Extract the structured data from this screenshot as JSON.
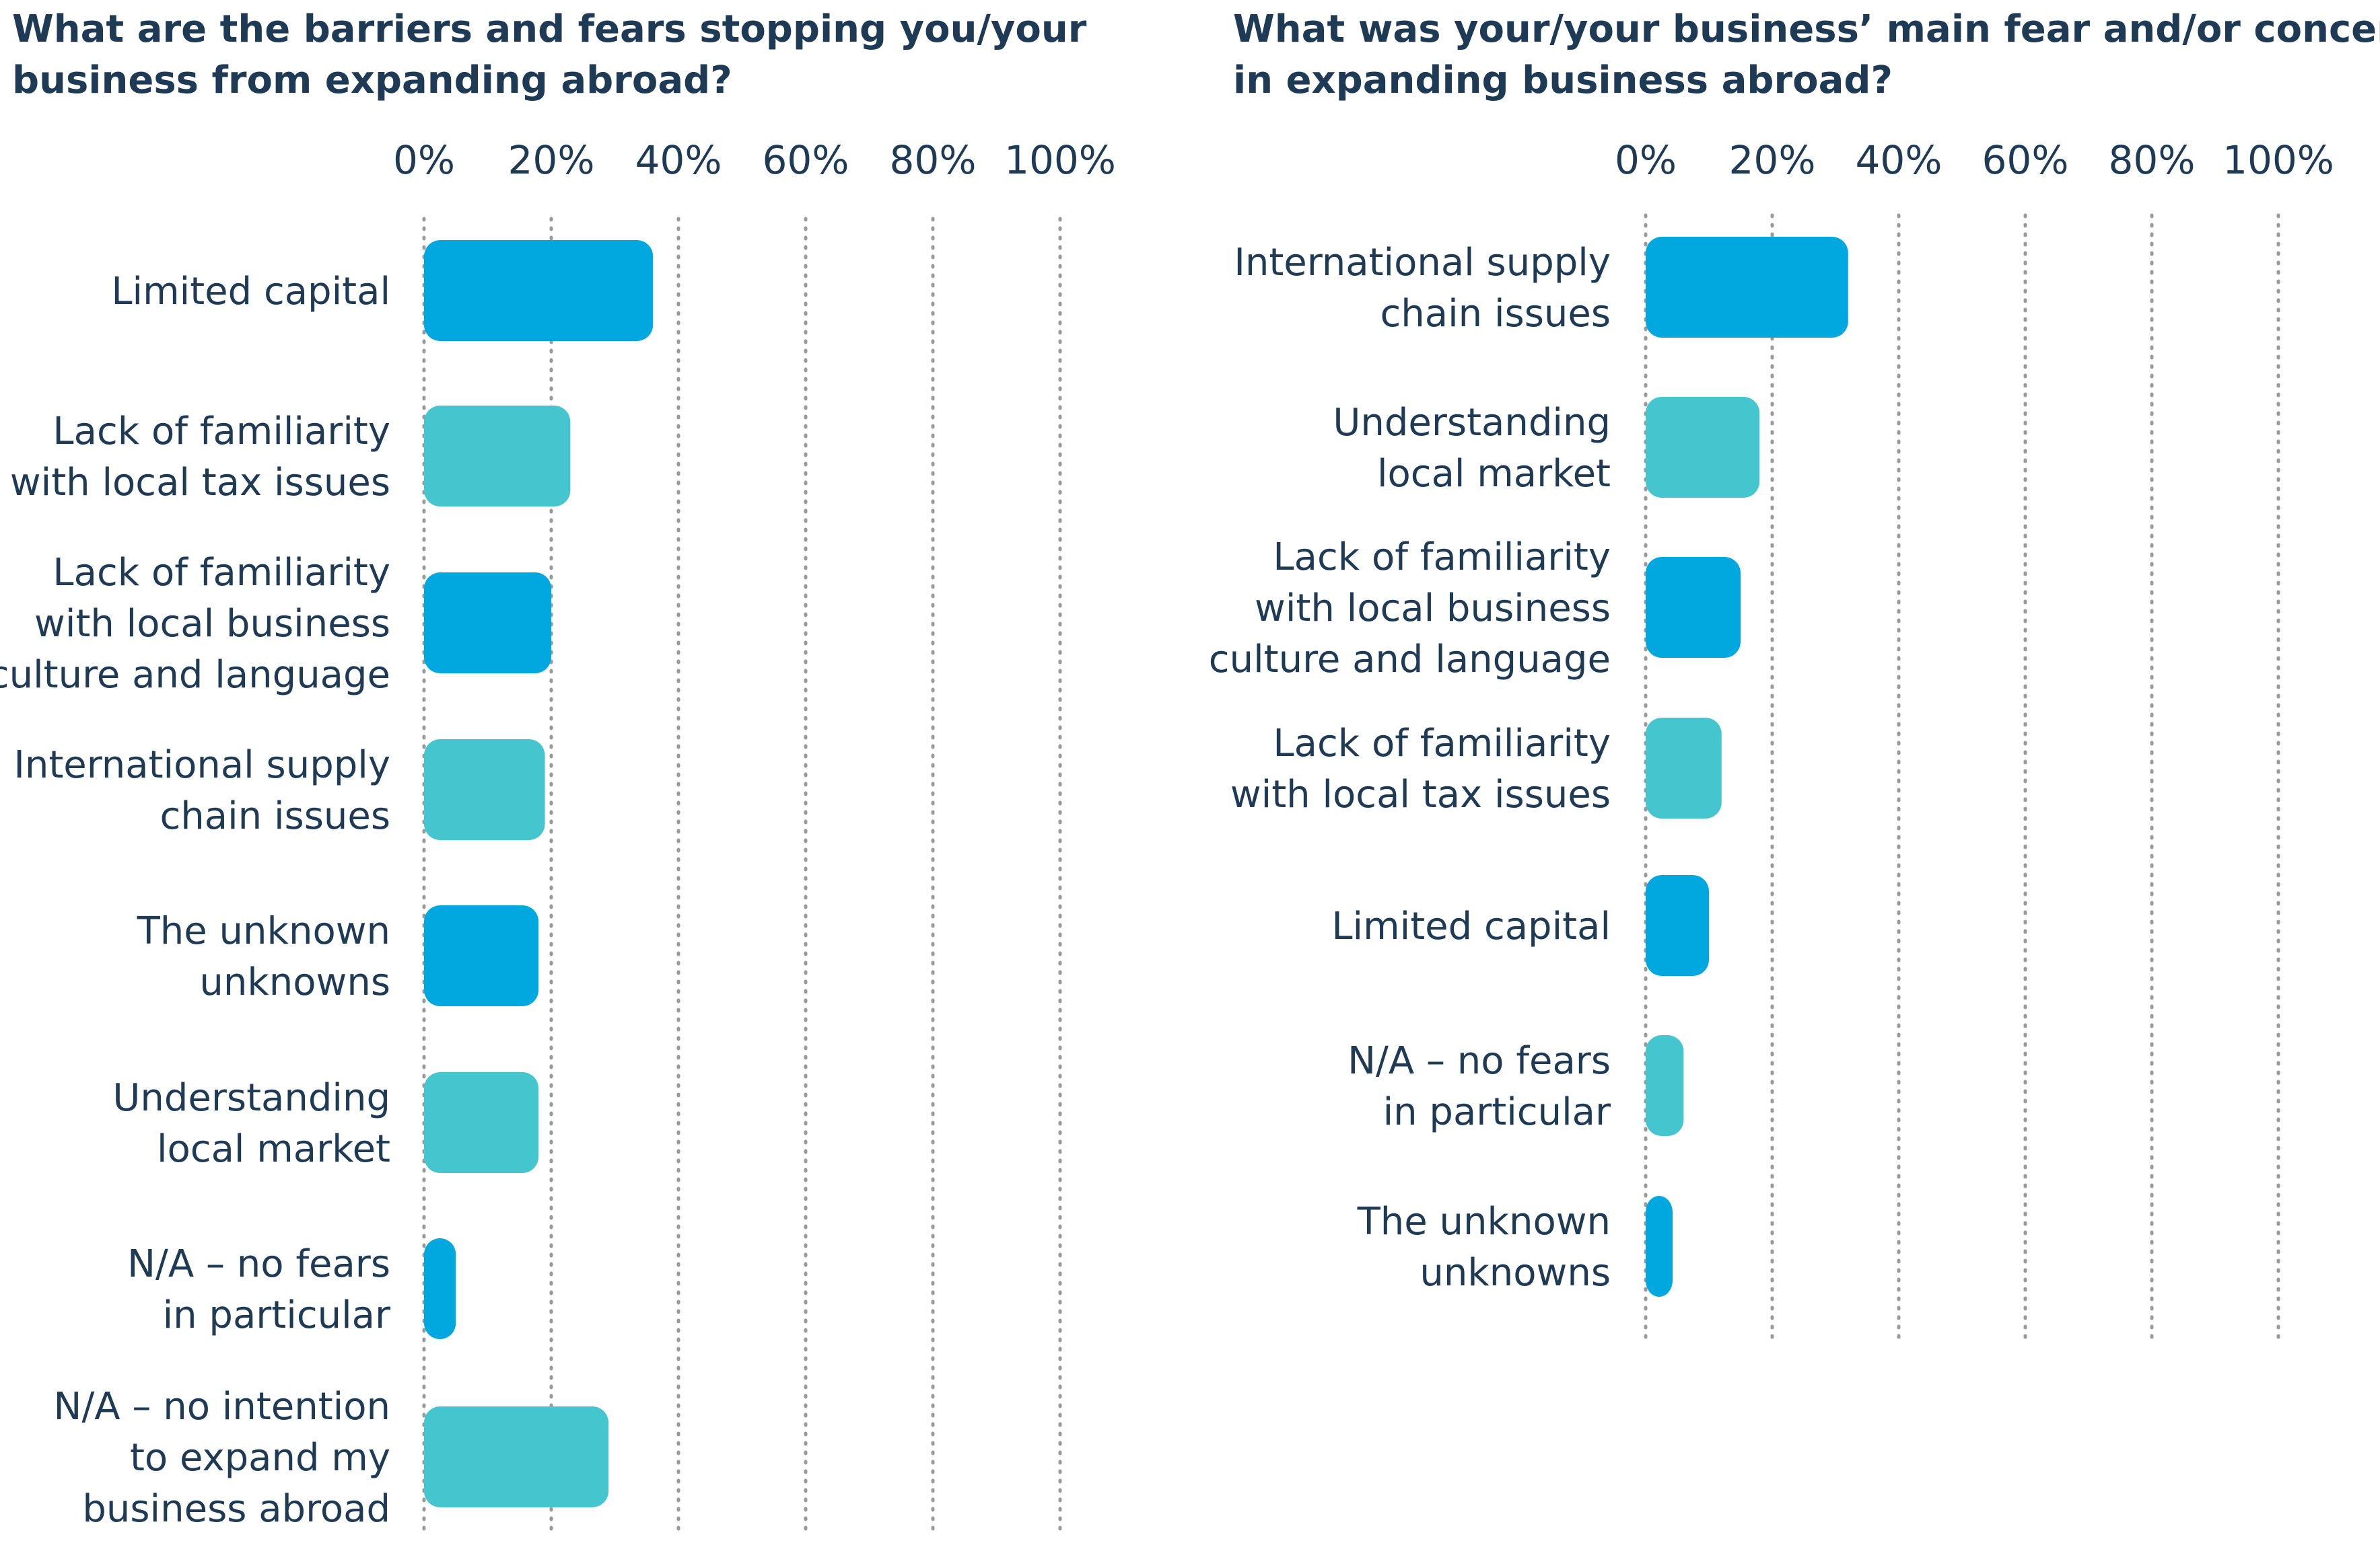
{
  "colors": {
    "dark": "#00a8df",
    "light": "#45c6cf",
    "text": "#1f3a55"
  },
  "chart_data": [
    {
      "type": "bar",
      "orientation": "horizontal",
      "title": "What are the barriers and fears stopping you/your business from expanding abroad?",
      "xlim": [
        0,
        100
      ],
      "xticks": [
        "0%",
        "20%",
        "40%",
        "60%",
        "80%",
        "100%"
      ],
      "grid": true,
      "categories": [
        "Limited capital",
        "Lack of familiarity with local tax issues",
        "Lack of familiarity with local business culture and language",
        "International supply chain issues",
        "The unknown unknowns",
        "Understanding local market",
        "N/A – no fears in particular",
        "N/A – no intention to expand my business abroad"
      ],
      "values": [
        36,
        23,
        20,
        19,
        18,
        18,
        5,
        29
      ]
    },
    {
      "type": "bar",
      "orientation": "horizontal",
      "title": "What was your/your business’ main fear and/or concern in expanding business abroad?",
      "xlim": [
        0,
        100
      ],
      "xticks": [
        "0%",
        "20%",
        "40%",
        "60%",
        "80%",
        "100%"
      ],
      "grid": true,
      "categories": [
        "International supply chain issues",
        "Understanding local market",
        "Lack of familiarity with local business culture and language",
        "Lack of familiarity with local tax issues",
        "Limited capital",
        "N/A – no fears in particular",
        "The unknown unknowns"
      ],
      "values": [
        32,
        18,
        15,
        12,
        10,
        6,
        4
      ]
    }
  ]
}
